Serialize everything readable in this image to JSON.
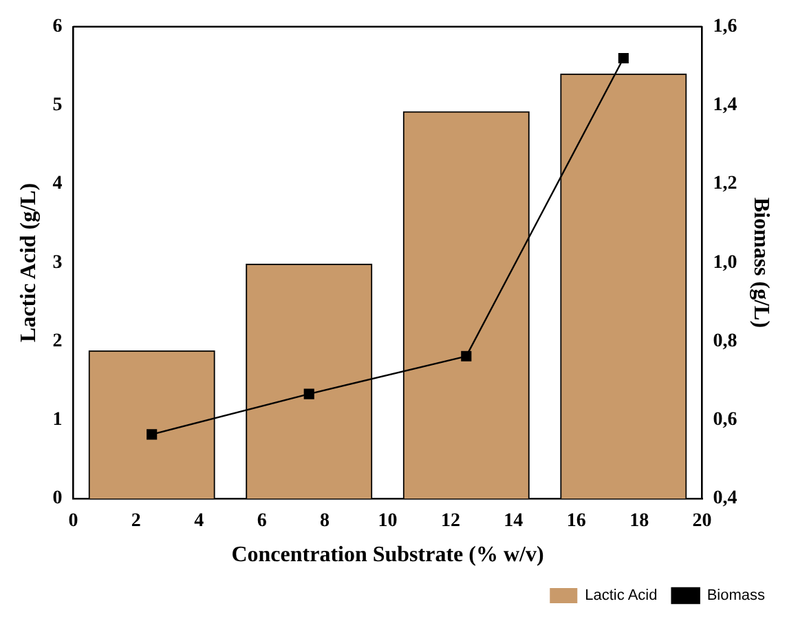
{
  "chart_data": {
    "type": "bar",
    "xlabel": "Concentration Substrate (% w/v)",
    "ylabel": "Lactic Acid (g/L)",
    "y2label": "Biomass (g/L)",
    "x": [
      2.5,
      7.5,
      12.5,
      17.5
    ],
    "series": [
      {
        "name": "Lactic Acid",
        "color": "#c99a6a",
        "values": [
          1.88,
          2.98,
          4.92,
          5.4
        ]
      },
      {
        "name": "Biomass",
        "type": "line",
        "axis": "y2",
        "color": "#000000",
        "marker": "square",
        "line_style": "solid",
        "values": [
          0.563,
          0.666,
          0.762,
          1.52
        ]
      }
    ],
    "xlim": [
      0,
      20
    ],
    "xticks": [
      0,
      2,
      4,
      6,
      8,
      10,
      12,
      14,
      16,
      18,
      20
    ],
    "ylim": [
      0,
      6
    ],
    "yticks": [
      0,
      1,
      2,
      3,
      4,
      5,
      6
    ],
    "y2lim": [
      0.4,
      1.6
    ],
    "y2ticks": [
      {
        "value": 0.4,
        "label": "0,4"
      },
      {
        "value": 0.6,
        "label": "0,6"
      },
      {
        "value": 0.8,
        "label": "0,8"
      },
      {
        "value": 1.0,
        "label": "1,0"
      },
      {
        "value": 1.2,
        "label": "1,2"
      },
      {
        "value": 1.4,
        "label": "1,4"
      },
      {
        "value": 1.6,
        "label": "1,6"
      }
    ],
    "grid": false,
    "legend": "bottom right"
  }
}
